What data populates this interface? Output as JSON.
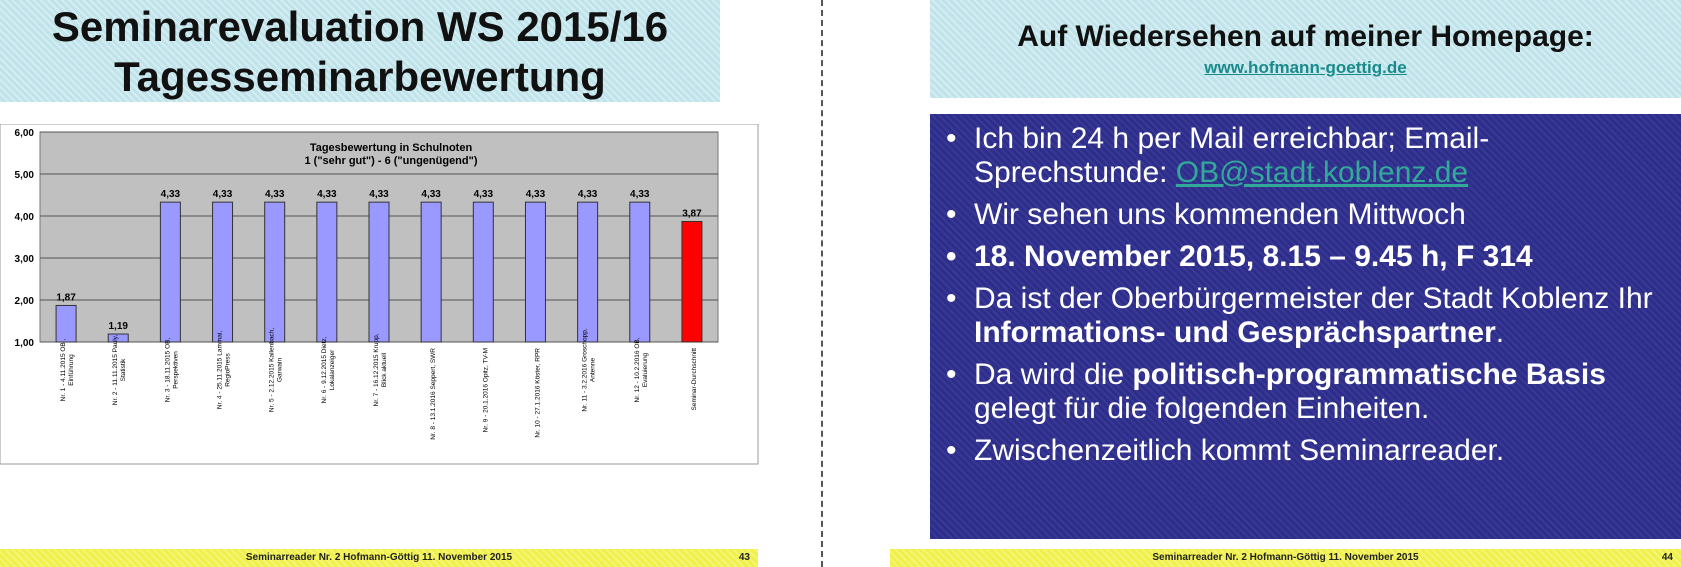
{
  "left_slide": {
    "title_line1": "Seminarevaluation WS 2015/16",
    "title_line2": "Tagesseminarbewertung",
    "footer_text": "Seminarreader Nr. 2 Hofmann-Göttig 11. November 2015",
    "page_number": "43"
  },
  "chart_data": {
    "type": "bar",
    "title": "Tagesbewertung in Schulnoten",
    "subtitle": "1 (\"sehr gut\") - 6 (\"ungenügend\")",
    "categories": [
      "Nr. 1 - 4.11.2015 OB , Einführung",
      "Nr. 2 - 11.11.2015 Pauly, Statistik",
      "Nr. 3 - 18.11.2015 OB, Perspektiven",
      "Nr. 4 - 25.11.2015 Lammai, RegioPress",
      "Nr. 5 - 2.12.2015 Kallenbach, Garwain",
      "Nr. 6 - 9.12.2015 Dietz, Lokalanzeiger",
      "Nr. 7 - 16.12.2015 Krupp, Blick aktuell",
      "Nr. 8 - 13.1.2016 Seppert, SWR",
      "Nr. 9 - 20.1.2016 Opitz, TV-M",
      "Nr. 10 - 27.1.2016 Köster, RPR",
      "Nr. 11 - 3.2.2016 Groschopp, Antenne",
      "Nr. 12 - 10.2.2016 OB, Evaluierung",
      "Seminar-Durchschnitt"
    ],
    "values": [
      1.87,
      1.19,
      4.33,
      4.33,
      4.33,
      4.33,
      4.33,
      4.33,
      4.33,
      4.33,
      4.33,
      4.33,
      3.87
    ],
    "value_labels": [
      "1,87",
      "1,19",
      "4,33",
      "4,33",
      "4,33",
      "4,33",
      "4,33",
      "4,33",
      "4,33",
      "4,33",
      "4,33",
      "4,33",
      "3,87"
    ],
    "yticks": [
      "1,00",
      "2,00",
      "3,00",
      "4,00",
      "5,00",
      "6,00"
    ],
    "ylim": [
      1,
      6
    ],
    "grid": true,
    "colors": {
      "bar": "#9999ff",
      "highlight": "#ff0000",
      "plot_bg": "#c0c0c0"
    }
  },
  "right_slide": {
    "title": "Auf Wiedersehen auf meiner Homepage:",
    "homepage_link": "www.hofmann-goettig.de",
    "bullet1_text": "Ich bin 24 h per Mail erreichbar; Email-Sprechstunde: ",
    "bullet1_link": "OB@stadt.koblenz.de",
    "bullet2": "Wir sehen uns kommenden Mittwoch",
    "bullet3": "18. November 2015, 8.15 – 9.45 h, F 314",
    "bullet4_part1": "Da ist der Oberbürgermeister der Stadt Koblenz Ihr ",
    "bullet4_bold": "Informations- und Gesprächspartner",
    "bullet4_part2": ".",
    "bullet5_part1": "Da wird die ",
    "bullet5_bold": "politisch-programmatische Basis",
    "bullet5_part2": " gelegt für die folgenden Einheiten.",
    "bullet6": "Zwischenzeitlich kommt Seminarreader.",
    "footer_text": "Seminarreader Nr. 2 Hofmann-Göttig 11. November 2015",
    "page_number": "44"
  }
}
